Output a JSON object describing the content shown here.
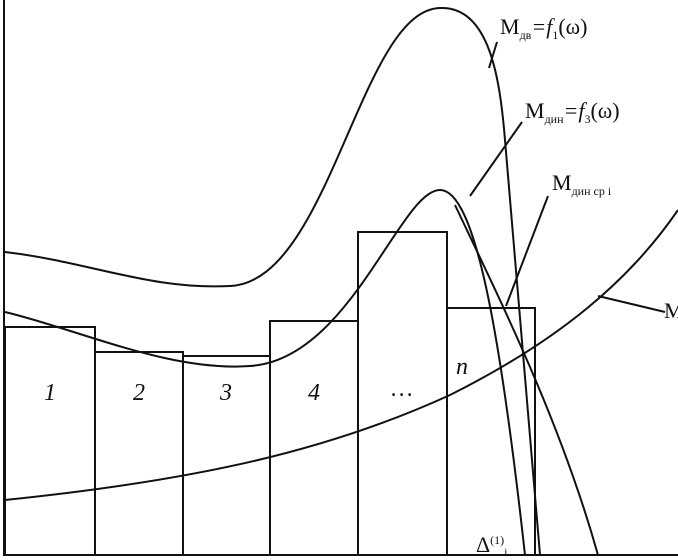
{
  "labels": {
    "m_dv": {
      "main": "M",
      "sub": "дв",
      "eq": "=f",
      "idx": "1",
      "arg": "(ω)"
    },
    "m_din": {
      "main": "M",
      "sub": "дин",
      "eq": "=f",
      "idx": "3",
      "arg": "(ω)"
    },
    "m_din_sr": {
      "main": "M",
      "sub": "дин ср i"
    },
    "m_cut": "M",
    "delta": {
      "main": "Δ",
      "sup": "(1)",
      "sub": "i"
    }
  },
  "columns": [
    "1",
    "2",
    "3",
    "4",
    "…",
    "n"
  ]
}
